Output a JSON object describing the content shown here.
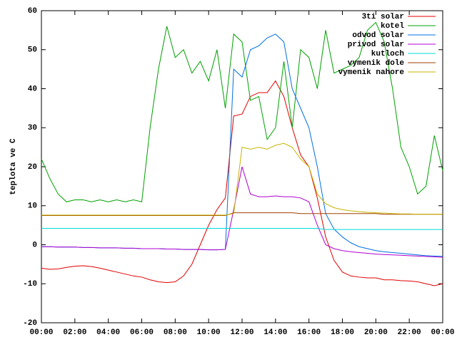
{
  "chart_data": {
    "type": "line",
    "ylabel": "teplota ve C",
    "xlim": [
      0,
      24
    ],
    "ylim": [
      -20,
      60
    ],
    "xticks": [
      {
        "value": 0,
        "label": "00:00"
      },
      {
        "value": 2,
        "label": "02:00"
      },
      {
        "value": 4,
        "label": "04:00"
      },
      {
        "value": 6,
        "label": "06:00"
      },
      {
        "value": 8,
        "label": "08:00"
      },
      {
        "value": 10,
        "label": "10:00"
      },
      {
        "value": 12,
        "label": "12:00"
      },
      {
        "value": 14,
        "label": "14:00"
      },
      {
        "value": 16,
        "label": "16:00"
      },
      {
        "value": 18,
        "label": "18:00"
      },
      {
        "value": 20,
        "label": "20:00"
      },
      {
        "value": 22,
        "label": "22:00"
      },
      {
        "value": 24,
        "label": "00:00"
      }
    ],
    "yticks": [
      -20,
      -10,
      0,
      10,
      20,
      30,
      40,
      50,
      60
    ],
    "grid": false,
    "legend": "top-right",
    "x": [
      0,
      0.5,
      1,
      1.5,
      2,
      2.5,
      3,
      3.5,
      4,
      4.5,
      5,
      5.5,
      6,
      6.5,
      7,
      7.5,
      8,
      8.5,
      9,
      9.5,
      10,
      10.5,
      11,
      11.5,
      12,
      12.5,
      13,
      13.5,
      14,
      14.5,
      15,
      15.5,
      16,
      16.5,
      17,
      17.5,
      18,
      18.5,
      19,
      19.5,
      20,
      20.5,
      21,
      21.5,
      22,
      22.5,
      23,
      23.5,
      24
    ],
    "series": [
      {
        "name": "3ti solar",
        "color": "#e00000",
        "values": [
          -6,
          -6.3,
          -6.2,
          -5.8,
          -5.5,
          -5.4,
          -5.6,
          -6,
          -6.5,
          -7,
          -7.5,
          -8,
          -8.3,
          -9,
          -9.5,
          -9.7,
          -9.5,
          -8,
          -5,
          0,
          5,
          9,
          12,
          33,
          33.5,
          38,
          39,
          39,
          42,
          38,
          30,
          23,
          20,
          12,
          2,
          -4,
          -7,
          -8,
          -8.3,
          -8.5,
          -8.5,
          -9,
          -9,
          -9.2,
          -9.3,
          -9.5,
          -10,
          -10.5,
          -10
        ]
      },
      {
        "name": "kotel",
        "color": "#00a000",
        "values": [
          22,
          17,
          13,
          11,
          11.5,
          11.5,
          11,
          11.5,
          11,
          11.5,
          11,
          11.5,
          11,
          30,
          45,
          56,
          48,
          50,
          44,
          47,
          42,
          50,
          35,
          54,
          52,
          37,
          38,
          27,
          30,
          47,
          30,
          50,
          48,
          40,
          55,
          44,
          45,
          46,
          48,
          55,
          57,
          52,
          40,
          25,
          20,
          13,
          15,
          28,
          19
        ]
      },
      {
        "name": "odvod solar",
        "color": "#0070e0",
        "values": [
          -0.5,
          -0.5,
          -0.6,
          -0.6,
          -0.6,
          -0.7,
          -0.7,
          -0.8,
          -0.8,
          -0.8,
          -0.9,
          -0.9,
          -1,
          -1,
          -1,
          -1.1,
          -1.1,
          -1.2,
          -1.2,
          -1.2,
          -1.3,
          -1.3,
          -1.2,
          45,
          43,
          50,
          51,
          53,
          54,
          52,
          40,
          35,
          30,
          20,
          8,
          4,
          2,
          0.5,
          -0.5,
          -1,
          -1.5,
          -1.8,
          -2,
          -2.2,
          -2.4,
          -2.6,
          -2.8,
          -2.9,
          -3
        ]
      },
      {
        "name": "privod solar",
        "color": "#b000d0",
        "values": [
          -0.5,
          -0.5,
          -0.6,
          -0.6,
          -0.6,
          -0.7,
          -0.7,
          -0.8,
          -0.8,
          -0.8,
          -0.9,
          -0.9,
          -1,
          -1,
          -1,
          -1.1,
          -1.1,
          -1.2,
          -1.2,
          -1.2,
          -1.3,
          -1.3,
          -1.2,
          9,
          20,
          13,
          12.3,
          12.3,
          12.5,
          12.3,
          12.3,
          12,
          11,
          5,
          0,
          -1,
          -1.5,
          -1.8,
          -2,
          -2.2,
          -2.4,
          -2.5,
          -2.6,
          -2.7,
          -2.8,
          -2.9,
          -3,
          -3.1,
          -3.2
        ]
      },
      {
        "name": "kutloch",
        "color": "#00d8d8",
        "values": [
          4.2,
          4.2,
          4.2,
          4.2,
          4.2,
          4.2,
          4.2,
          4.2,
          4.2,
          4.2,
          4.2,
          4.2,
          4.2,
          4.2,
          4.2,
          4.2,
          4.2,
          4.2,
          4.2,
          4.2,
          4.2,
          4.2,
          4.2,
          4.2,
          4.2,
          4.2,
          4.2,
          4.2,
          4.2,
          4.2,
          4.2,
          4.2,
          4.2,
          4.2,
          3.9,
          3.9,
          3.9,
          3.9,
          3.9,
          3.9,
          3.9,
          3.9,
          3.9,
          3.9,
          3.9,
          3.9,
          3.9,
          3.9,
          3.9
        ]
      },
      {
        "name": "vymenik dole",
        "color": "#a04000",
        "values": [
          7.5,
          7.5,
          7.5,
          7.5,
          7.5,
          7.5,
          7.5,
          7.5,
          7.5,
          7.5,
          7.5,
          7.5,
          7.5,
          7.5,
          7.5,
          7.5,
          7.5,
          7.5,
          7.5,
          7.5,
          7.5,
          7.5,
          7.5,
          8.2,
          8.2,
          8.2,
          8.2,
          8.2,
          8.2,
          8.2,
          8.2,
          8,
          8,
          8,
          8,
          8,
          8,
          8,
          8,
          8,
          8,
          7.8,
          7.8,
          7.8,
          7.8,
          7.8,
          7.8,
          7.8,
          7.8
        ]
      },
      {
        "name": "vymenik nahore",
        "color": "#c8b400",
        "values": [
          7.6,
          7.6,
          7.6,
          7.6,
          7.6,
          7.6,
          7.6,
          7.6,
          7.6,
          7.6,
          7.6,
          7.6,
          7.6,
          7.6,
          7.6,
          7.6,
          7.6,
          7.6,
          7.6,
          7.6,
          7.6,
          7.6,
          7.6,
          8,
          25,
          24.5,
          25,
          24.5,
          25.5,
          26,
          25,
          22,
          20,
          13,
          10.5,
          9.5,
          9,
          8.7,
          8.5,
          8.3,
          8.2,
          8.1,
          8,
          7.9,
          7.9,
          7.8,
          7.8,
          7.8,
          7.8
        ]
      }
    ]
  }
}
